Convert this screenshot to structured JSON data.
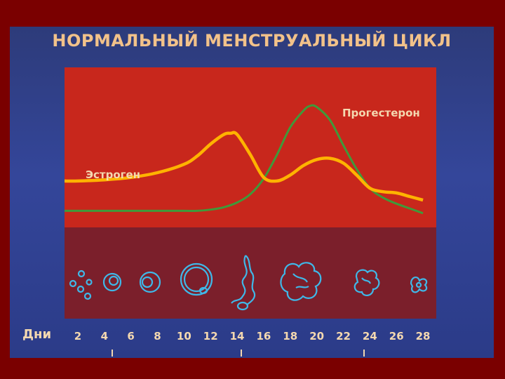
{
  "title": "НОРМАЛЬНЫЙ МЕНСТРУАЛЬНЫЙ ЦИКЛ",
  "colors": {
    "estrogen": "#ffb300",
    "progesterone": "#3f9a3a",
    "hormone_panel": "#c8271c",
    "follicle_panel": "#7b1f2b",
    "follicle_stroke": "#3fb8e8",
    "text": "#f4d8b0"
  },
  "chart_data": {
    "type": "line",
    "series": [
      {
        "name": "Эстроген",
        "x": [
          1,
          2,
          4,
          6,
          8,
          10,
          11,
          12,
          13,
          13.5,
          14,
          15,
          16,
          17,
          18,
          19,
          20,
          21,
          22,
          23,
          24,
          25,
          26,
          27,
          28
        ],
        "y": [
          0.33,
          0.33,
          0.34,
          0.36,
          0.4,
          0.47,
          0.54,
          0.64,
          0.72,
          0.73,
          0.72,
          0.55,
          0.36,
          0.33,
          0.38,
          0.46,
          0.51,
          0.52,
          0.48,
          0.38,
          0.27,
          0.24,
          0.23,
          0.2,
          0.17
        ]
      },
      {
        "name": "Прогестерон",
        "x": [
          1,
          2,
          4,
          6,
          8,
          10,
          11,
          12,
          13,
          14,
          15,
          16,
          17,
          18,
          19,
          19.5,
          20,
          21,
          22,
          23,
          24,
          25,
          26,
          27,
          28
        ],
        "y": [
          0.08,
          0.08,
          0.08,
          0.08,
          0.08,
          0.08,
          0.08,
          0.09,
          0.11,
          0.15,
          0.22,
          0.35,
          0.55,
          0.78,
          0.92,
          0.96,
          0.95,
          0.84,
          0.63,
          0.43,
          0.27,
          0.19,
          0.14,
          0.1,
          0.06
        ]
      }
    ],
    "xlabel": "Дни",
    "xticks": [
      2,
      4,
      6,
      8,
      10,
      12,
      14,
      16,
      18,
      20,
      22,
      24,
      26,
      28
    ],
    "xlim": [
      1,
      29
    ]
  },
  "labels": {
    "estrogen": "Эстроген",
    "progesterone": "Прогестерон",
    "days": "Дни"
  },
  "follicle_stages": [
    "primordial",
    "primary",
    "secondary",
    "antral",
    "preovulatory",
    "ovulation",
    "corpus-luteum",
    "regressing-corpus-luteum",
    "corpus-albicans"
  ]
}
